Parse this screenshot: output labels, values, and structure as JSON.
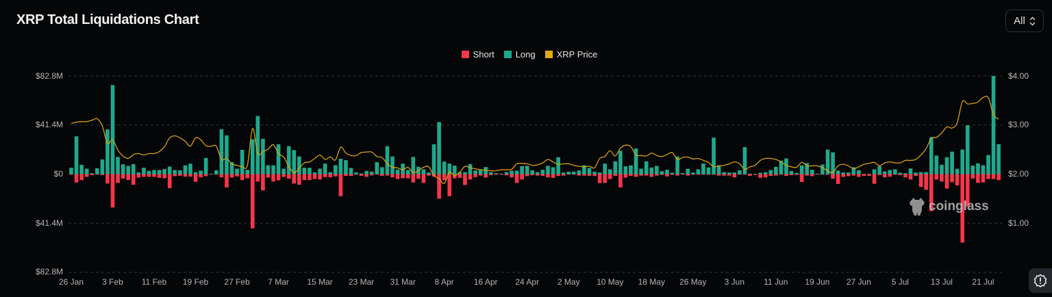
{
  "header": {
    "title": "XRP Total Liquidations Chart",
    "range_select": "All"
  },
  "legend": [
    {
      "label": "Short",
      "color": "#f6364a"
    },
    {
      "label": "Long",
      "color": "#1fa98c"
    },
    {
      "label": "XRP Price",
      "color": "#e3ab12"
    }
  ],
  "watermark": "coinglass",
  "chart_data": {
    "type": "bar",
    "title": "XRP Total Liquidations Chart",
    "x_tick_labels": [
      "26 Jan",
      "3 Feb",
      "11 Feb",
      "19 Feb",
      "27 Feb",
      "7 Mar",
      "15 Mar",
      "23 Mar",
      "31 Mar",
      "8 Apr",
      "16 Apr",
      "24 Apr",
      "2 May",
      "10 May",
      "18 May",
      "26 May",
      "3 Jun",
      "11 Jun",
      "19 Jun",
      "27 Jun",
      "5 Jul",
      "13 Jul",
      "21 Jul"
    ],
    "x_tick_interval_days": 8,
    "left_axis": {
      "unit": "USD millions",
      "ylim": [
        -82.8,
        82.8
      ],
      "tick_labels": [
        "$82.8M",
        "$41.4M",
        "$0",
        "$41.4M",
        "$82.8M"
      ]
    },
    "right_axis": {
      "unit": "USD",
      "ylim": [
        0,
        4
      ],
      "tick_labels": [
        "$4.00",
        "$3.00",
        "$2.00",
        "$1.00"
      ]
    },
    "grid": true,
    "legend_position": "top-center",
    "series": [
      {
        "name": "Long",
        "type": "bar",
        "axis": "left",
        "direction": "up",
        "values": [
          5.4,
          31.9,
          7.9,
          4.6,
          0.8,
          5.0,
          12.4,
          37.7,
          75.1,
          14.5,
          8.3,
          6.9,
          8.5,
          1.5,
          5.4,
          2.7,
          3.5,
          3.5,
          4.3,
          6.4,
          3.5,
          3.3,
          7.5,
          8.9,
          1.7,
          2.9,
          13.7,
          0.3,
          3.3,
          37.9,
          32.7,
          10.1,
          4.6,
          20.5,
          3.7,
          29.4,
          49.0,
          29.8,
          7.5,
          7.5,
          25.2,
          4.6,
          23.6,
          20.3,
          14.9,
          5.4,
          5.4,
          1.5,
          4.6,
          8.9,
          1.7,
          7.5,
          13.0,
          11.8,
          5.2,
          1.5,
          0.6,
          2.7,
          2.1,
          10.1,
          5.8,
          23.6,
          14.9,
          3.9,
          8.9,
          3.5,
          14.5,
          6.2,
          4.1,
          1.4,
          25.2,
          43.9,
          10.6,
          8.9,
          7.2,
          1.7,
          1.7,
          8.5,
          3.1,
          3.5,
          6.0,
          1.7,
          0.8,
          0.4,
          1.7,
          2.9,
          2.9,
          6.8,
          7.0,
          3.3,
          1.7,
          3.7,
          7.0,
          5.8,
          14.3,
          1.4,
          2.1,
          2.1,
          3.1,
          7.5,
          5.2,
          2.1,
          1.4,
          8.9,
          4.1,
          10.8,
          19.7,
          6.6,
          7.4,
          21.7,
          4.6,
          10.8,
          5.6,
          7.0,
          2.5,
          3.7,
          1.2,
          14.9,
          0.8,
          4.5,
          1.4,
          4.1,
          8.9,
          5.6,
          30.8,
          7.5,
          1.7,
          1.4,
          1.4,
          3.3,
          22.8,
          0.4,
          0.2,
          1.2,
          1.7,
          3.5,
          6.2,
          11.4,
          13.2,
          2.7,
          1.0,
          7.4,
          9.3,
          3.7,
          0.4,
          8.1,
          20.7,
          18.4,
          3.1,
          1.5,
          1.4,
          5.8,
          3.3,
          0.2,
          0.2,
          4.1,
          6.6,
          2.3,
          3.5,
          4.1,
          1.2,
          0.8,
          4.8,
          1.4,
          1.7,
          1.7,
          31.3,
          15.7,
          7.9,
          14.3,
          19.0,
          4.5,
          20.7,
          41.2,
          7.2,
          9.1,
          7.5,
          16.1,
          82.8,
          25.3
        ]
      },
      {
        "name": "Short",
        "type": "bar",
        "axis": "left",
        "direction": "down",
        "values": [
          0.4,
          7.0,
          5.0,
          2.3,
          0.8,
          0.4,
          0.8,
          7.9,
          28.1,
          7.4,
          3.7,
          5.0,
          8.9,
          2.9,
          2.3,
          2.3,
          2.3,
          3.1,
          3.5,
          11.8,
          1.7,
          1.4,
          2.1,
          2.1,
          6.4,
          2.7,
          1.7,
          0.3,
          0.3,
          2.7,
          11.2,
          2.9,
          1.9,
          5.0,
          3.5,
          45.7,
          6.2,
          13.7,
          2.9,
          6.2,
          5.2,
          2.3,
          3.9,
          7.9,
          8.9,
          5.0,
          5.0,
          4.1,
          4.6,
          2.5,
          2.7,
          1.9,
          18.6,
          1.5,
          1.5,
          0.4,
          1.4,
          2.3,
          1.0,
          0.4,
          1.4,
          1.2,
          2.7,
          4.1,
          3.5,
          3.5,
          7.0,
          3.9,
          7.4,
          1.2,
          2.1,
          20.7,
          5.0,
          18.6,
          3.5,
          3.1,
          9.1,
          4.5,
          2.5,
          1.2,
          2.9,
          0.8,
          0.4,
          0.4,
          1.0,
          2.7,
          7.4,
          4.5,
          1.7,
          0.8,
          1.2,
          1.5,
          2.7,
          3.1,
          1.5,
          1.2,
          0.4,
          0.4,
          1.2,
          1.2,
          1.5,
          1.5,
          7.5,
          7.4,
          4.1,
          1.5,
          11.2,
          2.9,
          1.5,
          2.3,
          1.2,
          1.2,
          2.3,
          1.2,
          0.6,
          1.9,
          0.6,
          1.2,
          0.2,
          1.2,
          0.4,
          0.4,
          0.4,
          0.4,
          0.4,
          1.2,
          1.2,
          1.2,
          2.7,
          0.4,
          0.4,
          1.4,
          0.6,
          3.1,
          2.7,
          1.5,
          1.2,
          0.4,
          1.5,
          0.8,
          0.6,
          6.6,
          1.2,
          1.7,
          0.2,
          0.4,
          0.4,
          3.9,
          8.3,
          2.3,
          1.7,
          1.2,
          2.3,
          1.5,
          1.4,
          8.1,
          0.8,
          2.7,
          2.1,
          0.4,
          0.8,
          2.7,
          4.5,
          1.5,
          10.8,
          13.2,
          31.2,
          4.6,
          6.2,
          12.2,
          6.8,
          9.5,
          57.7,
          27.3,
          3.7,
          7.4,
          7.0,
          4.1,
          4.1,
          5.0
        ]
      },
      {
        "name": "XRP Price",
        "type": "line",
        "axis": "right",
        "values": [
          3.03,
          3.06,
          3.07,
          3.07,
          3.1,
          3.13,
          2.98,
          2.63,
          2.7,
          2.49,
          2.37,
          2.32,
          2.4,
          2.42,
          2.39,
          2.42,
          2.42,
          2.46,
          2.56,
          2.74,
          2.78,
          2.74,
          2.67,
          2.57,
          2.74,
          2.7,
          2.58,
          2.57,
          2.57,
          2.3,
          2.32,
          2.21,
          2.18,
          2.15,
          2.18,
          2.93,
          2.42,
          2.46,
          2.51,
          2.6,
          2.42,
          2.35,
          2.16,
          2.03,
          2.12,
          2.23,
          2.25,
          2.32,
          2.39,
          2.3,
          2.35,
          2.29,
          2.55,
          2.43,
          2.38,
          2.38,
          2.44,
          2.45,
          2.45,
          2.36,
          2.34,
          2.21,
          2.14,
          2.13,
          2.09,
          2.14,
          2.03,
          2.07,
          2.14,
          2.15,
          1.97,
          1.91,
          1.81,
          2.04,
          1.97,
          2.04,
          2.16,
          2.13,
          2.11,
          2.09,
          2.08,
          2.07,
          2.07,
          2.09,
          2.09,
          2.1,
          2.21,
          2.22,
          2.21,
          2.18,
          2.19,
          2.23,
          2.3,
          2.25,
          2.2,
          2.21,
          2.21,
          2.18,
          2.16,
          2.15,
          2.16,
          2.13,
          2.32,
          2.36,
          2.48,
          2.37,
          2.53,
          2.59,
          2.56,
          2.39,
          2.38,
          2.37,
          2.43,
          2.38,
          2.36,
          2.4,
          2.44,
          2.3,
          2.34,
          2.35,
          2.31,
          2.32,
          2.28,
          2.24,
          2.15,
          2.17,
          2.18,
          2.21,
          2.25,
          2.21,
          2.1,
          2.15,
          2.18,
          2.28,
          2.32,
          2.32,
          2.3,
          2.25,
          2.18,
          2.15,
          2.14,
          2.24,
          2.17,
          2.17,
          2.17,
          2.13,
          2.07,
          2.03,
          2.17,
          2.2,
          2.17,
          2.11,
          2.15,
          2.2,
          2.22,
          2.24,
          2.17,
          2.23,
          2.25,
          2.23,
          2.23,
          2.28,
          2.28,
          2.3,
          2.39,
          2.52,
          2.73,
          2.75,
          2.84,
          2.96,
          2.94,
          3.05,
          3.48,
          3.43,
          3.44,
          3.47,
          3.56,
          3.56,
          3.21,
          3.12
        ]
      }
    ]
  }
}
